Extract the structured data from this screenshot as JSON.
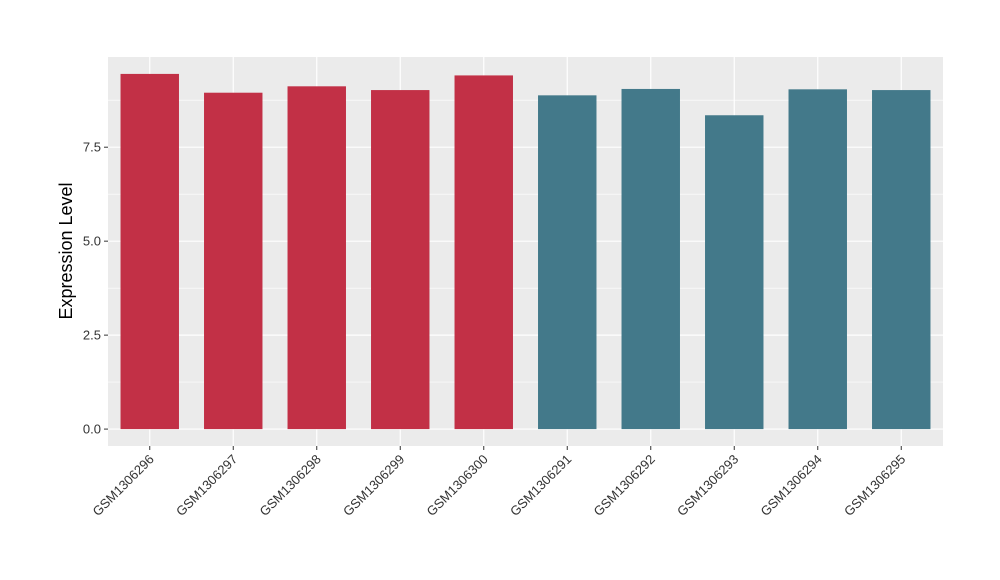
{
  "chart_data": {
    "type": "bar",
    "ylabel": "Expression Level",
    "xlabel": "",
    "categories": [
      "GSM1306296",
      "GSM1306297",
      "GSM1306298",
      "GSM1306299",
      "GSM1306300",
      "GSM1306291",
      "GSM1306292",
      "GSM1306293",
      "GSM1306294",
      "GSM1306295"
    ],
    "values": [
      9.45,
      8.95,
      9.12,
      9.02,
      9.41,
      8.88,
      9.05,
      8.35,
      9.04,
      9.02
    ],
    "bar_colors": [
      "#c23046",
      "#c23046",
      "#c23046",
      "#c23046",
      "#c23046",
      "#43798a",
      "#43798a",
      "#43798a",
      "#43798a",
      "#43798a"
    ],
    "ylim": [
      -0.45,
      9.9
    ],
    "yticks": [
      0.0,
      2.5,
      5.0,
      7.5
    ],
    "ytick_labels": [
      "0.0",
      "2.5",
      "5.0",
      "7.5"
    ],
    "grid": true,
    "panel_background": "#ebebeb",
    "gridline_color": "#ffffff"
  }
}
